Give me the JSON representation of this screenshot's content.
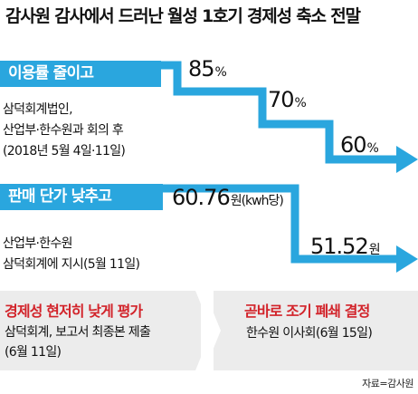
{
  "title": "감사원 감사에서 드러난 월성 1호기 경제성 축소 전말",
  "utilization": {
    "label": "이용률 줄이고",
    "note_lines": [
      "삼덕회계법인,",
      "산업부·한수원과 회의 후",
      "(2018년 5월 4일·11일)"
    ],
    "values": [
      {
        "num": "85",
        "unit": "%"
      },
      {
        "num": "70",
        "unit": "%"
      },
      {
        "num": "60",
        "unit": "%"
      }
    ]
  },
  "price": {
    "label": "판매 단가 낮추고",
    "note_lines": [
      "산업부·한수원",
      "삼덕회계에 지시(5월 11일)"
    ],
    "values": [
      {
        "num": "60.76",
        "unit": "원(kwh당)"
      },
      {
        "num": "51.52",
        "unit": "원"
      }
    ]
  },
  "steps": [
    {
      "title": "경제성 현저히 낮게 평가",
      "lines": [
        "삼덕회계, 보고서 최종본 제출",
        "(6월 11일)"
      ]
    },
    {
      "title": "곧바로 조기 폐쇄 결정",
      "lines": [
        "한수원 이사회(6월 15일)"
      ]
    }
  ],
  "source": "자료=감사원",
  "colors": {
    "arrow": "#2aa6de",
    "accent": "#d2232a",
    "panel": "#ececec",
    "chevron": "#ffffff"
  }
}
